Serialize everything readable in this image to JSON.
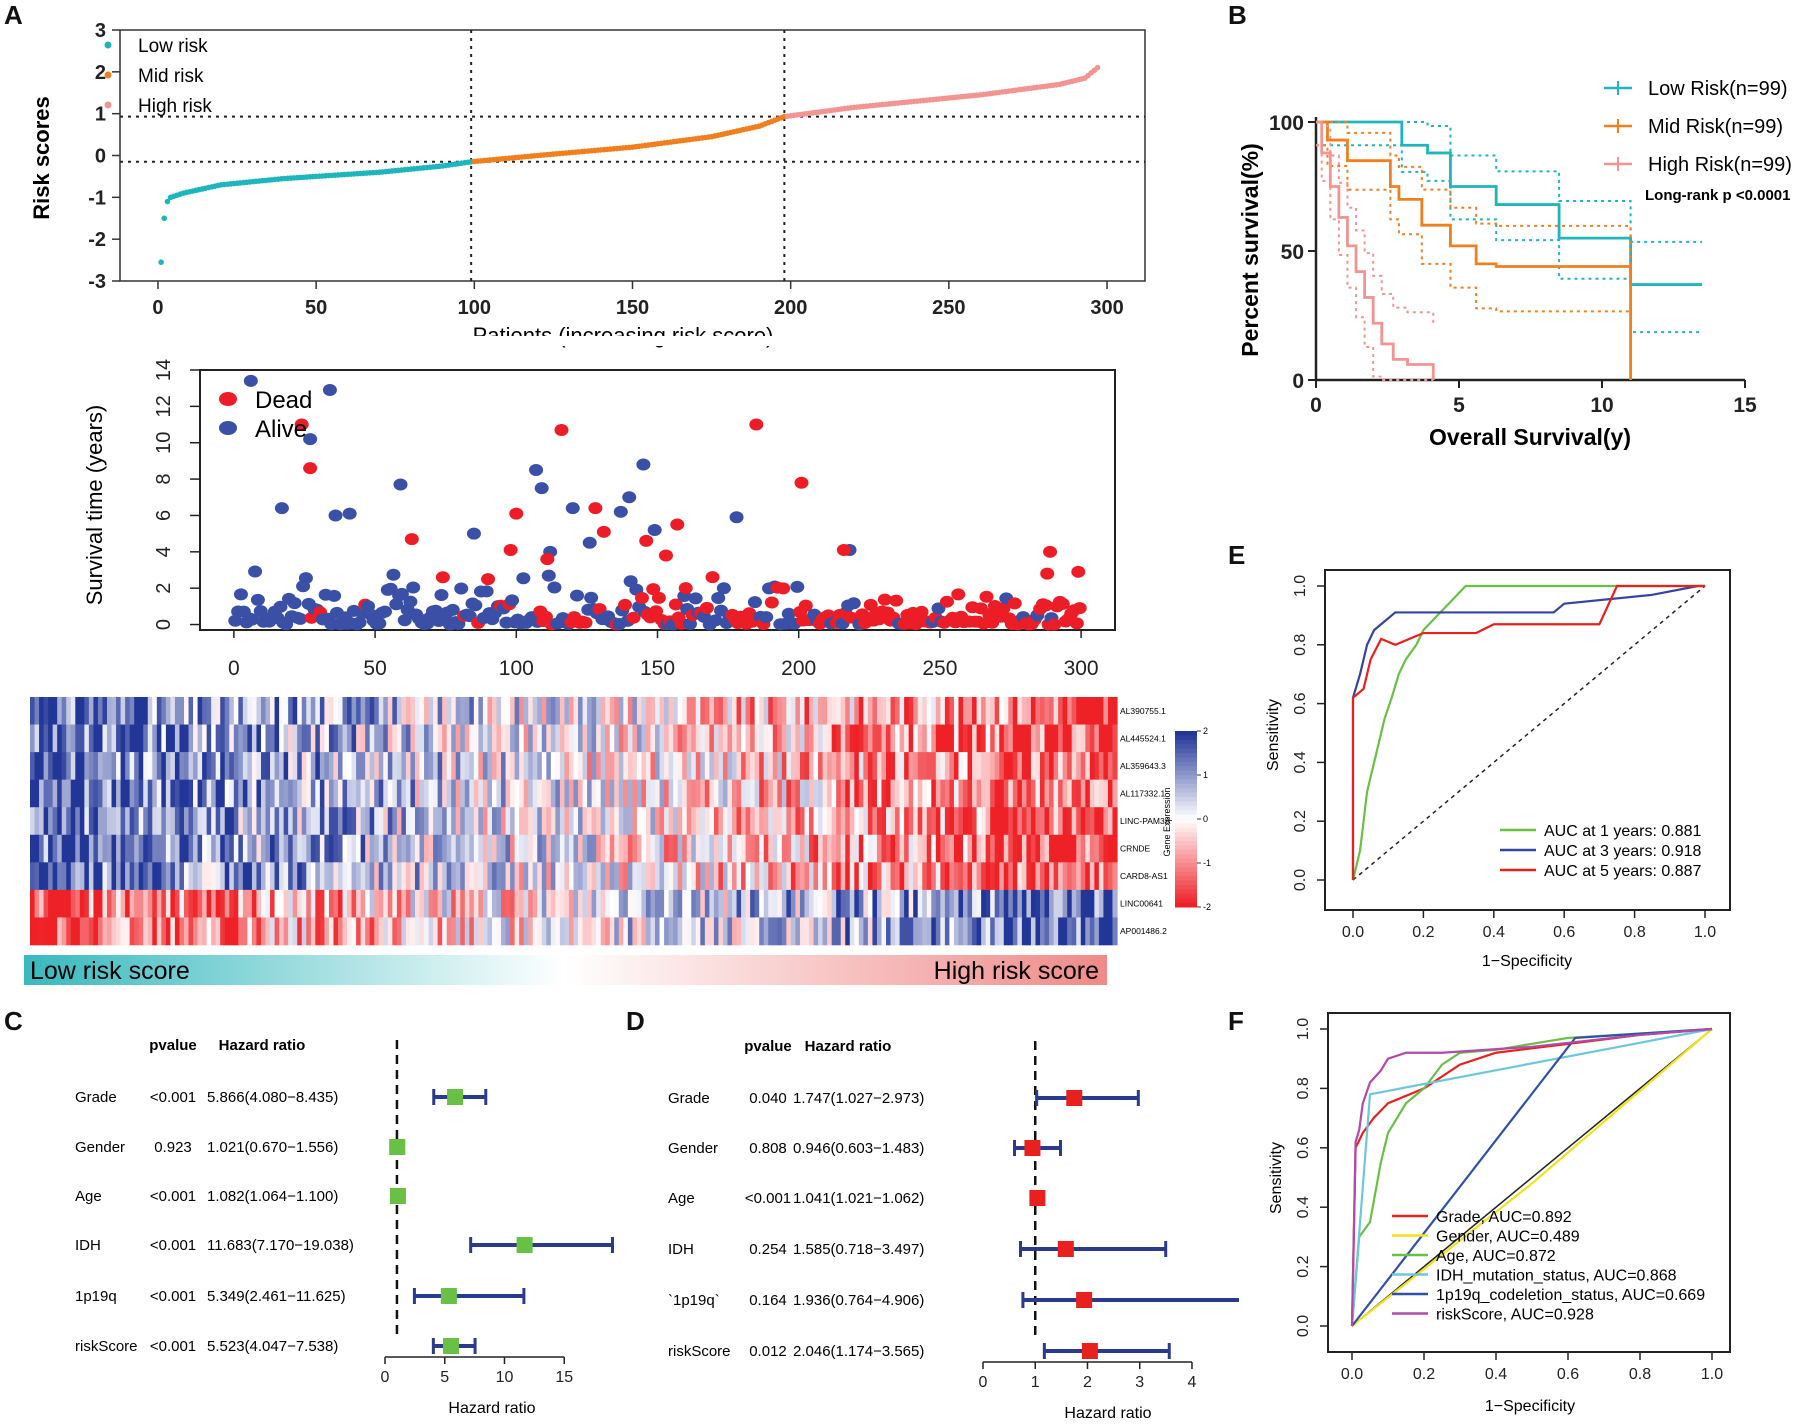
{
  "colors": {
    "low": "#1fb5bd",
    "mid": "#f07f1e",
    "high": "#f19492",
    "dead": "#ec1d26",
    "alive": "#3a4fa6",
    "green": "#6abf45",
    "red": "#e8211e",
    "navy": "#2a3a8c",
    "roc1": "#6abf45",
    "roc3": "#3345a1",
    "roc5": "#e8211e",
    "grade": "#e8211e",
    "gender": "#f0e21a",
    "age": "#6abf45",
    "idh": "#6ec6dd",
    "codel": "#3051a6",
    "risk": "#b24aa8"
  },
  "panels": {
    "A": {
      "label": "A",
      "risk_plot": {
        "ylabel": "Risk scores",
        "xlabel": "Patients (increasing risk score)",
        "legend": [
          "Low risk",
          "Mid risk",
          "High risk"
        ]
      },
      "survival_scatter": {
        "ylabel": "Survival time (years)",
        "legend": [
          "Dead",
          "Alive"
        ]
      },
      "heatmap": {
        "genes": [
          "AL390755.1",
          "AL445524.1",
          "AL359643.3",
          "AL117332.1",
          "LINC-PAM3A",
          "CRNDE",
          "CARD8-AS1",
          "LINC00641",
          "AP001486.2"
        ],
        "colorbar_label": "Gene Expression",
        "colorbar_ticks": [
          "2",
          "1",
          "0",
          "-1",
          "-2"
        ],
        "bar_left": "Low risk score",
        "bar_right": "High risk score"
      }
    },
    "B": {
      "label": "B",
      "xlabel": "Overall Survival(y)",
      "ylabel": "Percent survival(%)",
      "legend": [
        "Low Risk(n=99)",
        "Mid Risk(n=99)",
        "High Risk(n=99)"
      ],
      "pvalue": "Long-rank p <0.0001"
    },
    "C": {
      "label": "C",
      "col_pvalue": "pvalue",
      "col_hr": "Hazard ratio",
      "xlabel": "Hazard ratio",
      "rows": [
        {
          "name": "Grade",
          "p": "<0.001",
          "hr_text": "5.866(4.080−8.435)"
        },
        {
          "name": "Gender",
          "p": "0.923",
          "hr_text": "1.021(0.670−1.556)"
        },
        {
          "name": "Age",
          "p": "<0.001",
          "hr_text": "1.082(1.064−1.100)"
        },
        {
          "name": "IDH",
          "p": "<0.001",
          "hr_text": "11.683(7.170−19.038)"
        },
        {
          "name": "1p19q",
          "p": "<0.001",
          "hr_text": "5.349(2.461−11.625)"
        },
        {
          "name": "riskScore",
          "p": "<0.001",
          "hr_text": "5.523(4.047−7.538)"
        }
      ]
    },
    "D": {
      "label": "D",
      "col_pvalue": "pvalue",
      "col_hr": "Hazard ratio",
      "xlabel": "Hazard ratio",
      "rows": [
        {
          "name": "Grade",
          "p": "0.040",
          "hr_text": "1.747(1.027−2.973)"
        },
        {
          "name": "Gender",
          "p": "0.808",
          "hr_text": "0.946(0.603−1.483)"
        },
        {
          "name": "Age",
          "p": "<0.001",
          "hr_text": "1.041(1.021−1.062)"
        },
        {
          "name": "IDH",
          "p": "0.254",
          "hr_text": "1.585(0.718−3.497)"
        },
        {
          "name": "`1p19q`",
          "p": "0.164",
          "hr_text": "1.936(0.764−4.906)"
        },
        {
          "name": "riskScore",
          "p": "0.012",
          "hr_text": "2.046(1.174−3.565)"
        }
      ]
    },
    "E": {
      "label": "E",
      "xlabel": "1−Specificity",
      "ylabel": "Sensitivity",
      "legend": [
        "AUC at 1 years: 0.881",
        "AUC at 3 years: 0.918",
        "AUC at 5 years: 0.887"
      ]
    },
    "F": {
      "label": "F",
      "xlabel": "1−Specificity",
      "ylabel": "Sensitivity",
      "legend": [
        "Grade, AUC=0.892",
        "Gender, AUC=0.489",
        "Age, AUC=0.872",
        "IDH_mutation_status, AUC=0.868",
        "1p19q_codeletion_status, AUC=0.669",
        "riskScore, AUC=0.928"
      ]
    }
  },
  "chart_data": [
    {
      "id": "A-risk",
      "type": "scatter",
      "xlabel": "Patients (increasing risk score)",
      "ylabel": "Risk scores",
      "xlim": [
        -12,
        312
      ],
      "ylim": [
        -3,
        3
      ],
      "xticks": [
        0,
        50,
        100,
        150,
        200,
        250,
        300
      ],
      "yticks": [
        -3,
        -2,
        -1,
        0,
        1,
        2,
        3
      ],
      "cutoffs_x": [
        99,
        198
      ],
      "cutoffs_y": [
        -0.15,
        0.93
      ],
      "risk_knots_x": [
        1,
        2,
        3,
        4,
        8,
        20,
        40,
        70,
        90,
        99,
        120,
        150,
        175,
        190,
        198,
        220,
        260,
        285,
        293,
        297
      ],
      "risk_knots_y": [
        -2.55,
        -1.5,
        -1.1,
        -1.0,
        -0.9,
        -0.7,
        -0.55,
        -0.4,
        -0.25,
        -0.15,
        0.0,
        0.2,
        0.45,
        0.7,
        0.93,
        1.15,
        1.45,
        1.7,
        1.85,
        2.1
      ],
      "groups": [
        "Low risk",
        "Mid risk",
        "High risk"
      ]
    },
    {
      "id": "A-survival",
      "type": "scatter",
      "ylabel": "Survival time (years)",
      "xlim": [
        -12,
        312
      ],
      "ylim": [
        -0.3,
        14
      ],
      "xticks": [
        0,
        50,
        100,
        150,
        200,
        250,
        300
      ],
      "yticks": [
        0,
        2,
        4,
        6,
        8,
        10,
        12,
        14
      ],
      "dead_points": [
        [
          24,
          11.0
        ],
        [
          27,
          8.6
        ],
        [
          63,
          4.7
        ],
        [
          74,
          2.6
        ],
        [
          90,
          2.5
        ],
        [
          98,
          4.1
        ],
        [
          100,
          6.1
        ],
        [
          111,
          3.6
        ],
        [
          116,
          10.7
        ],
        [
          128,
          6.4
        ],
        [
          131,
          5.1
        ],
        [
          146,
          4.6
        ],
        [
          153,
          3.8
        ],
        [
          157,
          5.5
        ],
        [
          160,
          2.0
        ],
        [
          185,
          11.0
        ],
        [
          201,
          7.8
        ],
        [
          216,
          4.1
        ],
        [
          289,
          4.0
        ],
        [
          288,
          2.8
        ],
        [
          299,
          2.9
        ]
      ],
      "alive_points": [
        [
          6,
          13.4
        ],
        [
          34,
          12.9
        ],
        [
          27,
          10.2
        ],
        [
          17,
          6.4
        ],
        [
          59,
          7.7
        ],
        [
          36,
          6.0
        ],
        [
          41,
          6.1
        ],
        [
          85,
          5.0
        ],
        [
          107,
          8.5
        ],
        [
          109,
          7.5
        ],
        [
          112,
          4.0
        ],
        [
          120,
          6.4
        ],
        [
          137,
          6.2
        ],
        [
          140,
          7.0
        ],
        [
          145,
          8.8
        ],
        [
          178,
          5.9
        ],
        [
          149,
          5.2
        ],
        [
          126,
          4.5
        ],
        [
          218,
          4.1
        ]
      ],
      "legend": [
        "Dead",
        "Alive"
      ]
    },
    {
      "id": "A-heatmap",
      "type": "heatmap",
      "rows": [
        "AL390755.1",
        "AL445524.1",
        "AL359643.3",
        "AL117332.1",
        "LINC-PAM3A",
        "CRNDE",
        "CARD8-AS1",
        "LINC00641",
        "AP001486.2"
      ],
      "value_range": [
        -2,
        2
      ],
      "trend": "rows 1-7 low (blue) on left rising to high (red) on right; rows 8-9 the reverse"
    },
    {
      "id": "B",
      "type": "line",
      "title": "",
      "xlabel": "Overall Survival(y)",
      "ylabel": "Percent survival(%)",
      "xlim": [
        0,
        15
      ],
      "ylim": [
        0,
        100
      ],
      "xticks": [
        0,
        5,
        10,
        15
      ],
      "yticks": [
        0,
        50,
        100
      ],
      "series": [
        {
          "name": "Low Risk(n=99)",
          "x": [
            0,
            2.6,
            3.0,
            3.9,
            4.7,
            6.3,
            8.5,
            11.0,
            13.5
          ],
          "y": [
            100,
            100,
            91,
            88,
            75,
            68,
            55,
            37,
            37
          ]
        },
        {
          "name": "Mid Risk(n=99)",
          "x": [
            0,
            0.4,
            1.1,
            2.6,
            2.9,
            3.7,
            4.7,
            5.6,
            6.3,
            10.7,
            11.0
          ],
          "y": [
            100,
            93,
            85,
            75,
            70,
            60,
            52,
            45,
            44,
            44,
            0
          ]
        },
        {
          "name": "High Risk(n=99)",
          "x": [
            0,
            0.2,
            0.5,
            0.8,
            1.1,
            1.4,
            1.7,
            2.0,
            2.3,
            2.7,
            3.2,
            4.1
          ],
          "y": [
            100,
            88,
            75,
            63,
            52,
            42,
            32,
            22,
            14,
            8,
            6,
            0
          ]
        }
      ],
      "annotation": "Long-rank p <0.0001"
    },
    {
      "id": "C",
      "type": "forest",
      "xlabel": "Hazard ratio",
      "xlim": [
        0,
        19.5
      ],
      "xticks": [
        0,
        5,
        10,
        15
      ],
      "ref_line": 1,
      "rows": [
        {
          "name": "Grade",
          "hr": 5.866,
          "lo": 4.08,
          "hi": 8.435
        },
        {
          "name": "Gender",
          "hr": 1.021,
          "lo": 0.67,
          "hi": 1.556
        },
        {
          "name": "Age",
          "hr": 1.082,
          "lo": 1.064,
          "hi": 1.1
        },
        {
          "name": "IDH",
          "hr": 11.683,
          "lo": 7.17,
          "hi": 19.038
        },
        {
          "name": "1p19q",
          "hr": 5.349,
          "lo": 2.461,
          "hi": 11.625
        },
        {
          "name": "riskScore",
          "hr": 5.523,
          "lo": 4.047,
          "hi": 7.538
        }
      ]
    },
    {
      "id": "D",
      "type": "forest",
      "xlabel": "Hazard ratio",
      "xlim": [
        0,
        4.9
      ],
      "xticks": [
        0,
        1,
        2,
        3,
        4
      ],
      "ref_line": 1,
      "rows": [
        {
          "name": "Grade",
          "hr": 1.747,
          "lo": 1.027,
          "hi": 2.973
        },
        {
          "name": "Gender",
          "hr": 0.946,
          "lo": 0.603,
          "hi": 1.483
        },
        {
          "name": "Age",
          "hr": 1.041,
          "lo": 1.021,
          "hi": 1.062
        },
        {
          "name": "IDH",
          "hr": 1.585,
          "lo": 0.718,
          "hi": 3.497
        },
        {
          "name": "`1p19q`",
          "hr": 1.936,
          "lo": 0.764,
          "hi": 4.906
        },
        {
          "name": "riskScore",
          "hr": 2.046,
          "lo": 1.174,
          "hi": 3.565
        }
      ]
    },
    {
      "id": "E",
      "type": "line",
      "xlabel": "1−Specificity",
      "ylabel": "Sensitivity",
      "xlim": [
        0,
        1
      ],
      "ylim": [
        0,
        1
      ],
      "xticks": [
        0,
        0.2,
        0.4,
        0.6,
        0.8,
        1.0
      ],
      "yticks": [
        0,
        0.2,
        0.4,
        0.6,
        0.8,
        1.0
      ],
      "series": [
        {
          "name": "AUC at 1 years: 0.881",
          "x": [
            0,
            0.02,
            0.04,
            0.07,
            0.09,
            0.11,
            0.13,
            0.15,
            0.18,
            0.2,
            0.24,
            0.28,
            0.32,
            0.4,
            0.6,
            1.0
          ],
          "y": [
            0,
            0.1,
            0.3,
            0.45,
            0.55,
            0.62,
            0.7,
            0.75,
            0.8,
            0.85,
            0.9,
            0.95,
            1.0,
            1.0,
            1.0,
            1.0
          ]
        },
        {
          "name": "AUC at 3 years: 0.918",
          "x": [
            0,
            0.0,
            0.02,
            0.04,
            0.06,
            0.09,
            0.12,
            0.15,
            0.3,
            0.57,
            0.6,
            0.85,
            0.98,
            1.0
          ],
          "y": [
            0,
            0.62,
            0.7,
            0.8,
            0.85,
            0.88,
            0.91,
            0.91,
            0.91,
            0.91,
            0.94,
            0.97,
            1.0,
            1.0
          ]
        },
        {
          "name": "AUC at 5 years: 0.887",
          "x": [
            0,
            0.0,
            0.03,
            0.05,
            0.08,
            0.12,
            0.2,
            0.35,
            0.4,
            0.7,
            0.75,
            1.0
          ],
          "y": [
            0,
            0.62,
            0.65,
            0.75,
            0.82,
            0.8,
            0.84,
            0.84,
            0.87,
            0.87,
            1.0,
            1.0
          ]
        }
      ]
    },
    {
      "id": "F",
      "type": "line",
      "xlabel": "1−Specificity",
      "ylabel": "Sensitivity",
      "xlim": [
        0,
        1
      ],
      "ylim": [
        0,
        1
      ],
      "xticks": [
        0,
        0.2,
        0.4,
        0.6,
        0.8,
        1.0
      ],
      "yticks": [
        0,
        0.2,
        0.4,
        0.6,
        0.8,
        1.0
      ],
      "series": [
        {
          "name": "Grade, AUC=0.892",
          "x": [
            0,
            0.01,
            0.03,
            0.06,
            0.1,
            0.2,
            0.3,
            0.4,
            0.6,
            0.8,
            1.0
          ],
          "y": [
            0,
            0.6,
            0.65,
            0.7,
            0.75,
            0.8,
            0.88,
            0.92,
            0.95,
            0.98,
            1.0
          ]
        },
        {
          "name": "Gender, AUC=0.489",
          "x": [
            0,
            0.5,
            1.0
          ],
          "y": [
            0,
            0.48,
            1.0
          ]
        },
        {
          "name": "Age, AUC=0.872",
          "x": [
            0,
            0.02,
            0.05,
            0.08,
            0.1,
            0.15,
            0.2,
            0.25,
            0.3,
            0.4,
            0.6,
            1.0
          ],
          "y": [
            0,
            0.3,
            0.35,
            0.55,
            0.65,
            0.75,
            0.8,
            0.88,
            0.92,
            0.93,
            0.97,
            1.0
          ]
        },
        {
          "name": "IDH_mutation_status, AUC=0.868",
          "x": [
            0,
            0.05,
            1.0
          ],
          "y": [
            0,
            0.78,
            1.0
          ]
        },
        {
          "name": "1p19q_codeletion_status, AUC=0.669",
          "x": [
            0,
            0.62,
            1.0
          ],
          "y": [
            0,
            0.97,
            1.0
          ]
        },
        {
          "name": "riskScore, AUC=0.928",
          "x": [
            0,
            0.01,
            0.02,
            0.03,
            0.05,
            0.08,
            0.1,
            0.15,
            0.25,
            0.5,
            0.8,
            1.0
          ],
          "y": [
            0,
            0.62,
            0.66,
            0.75,
            0.82,
            0.86,
            0.9,
            0.92,
            0.92,
            0.94,
            0.98,
            1.0
          ]
        }
      ]
    }
  ]
}
